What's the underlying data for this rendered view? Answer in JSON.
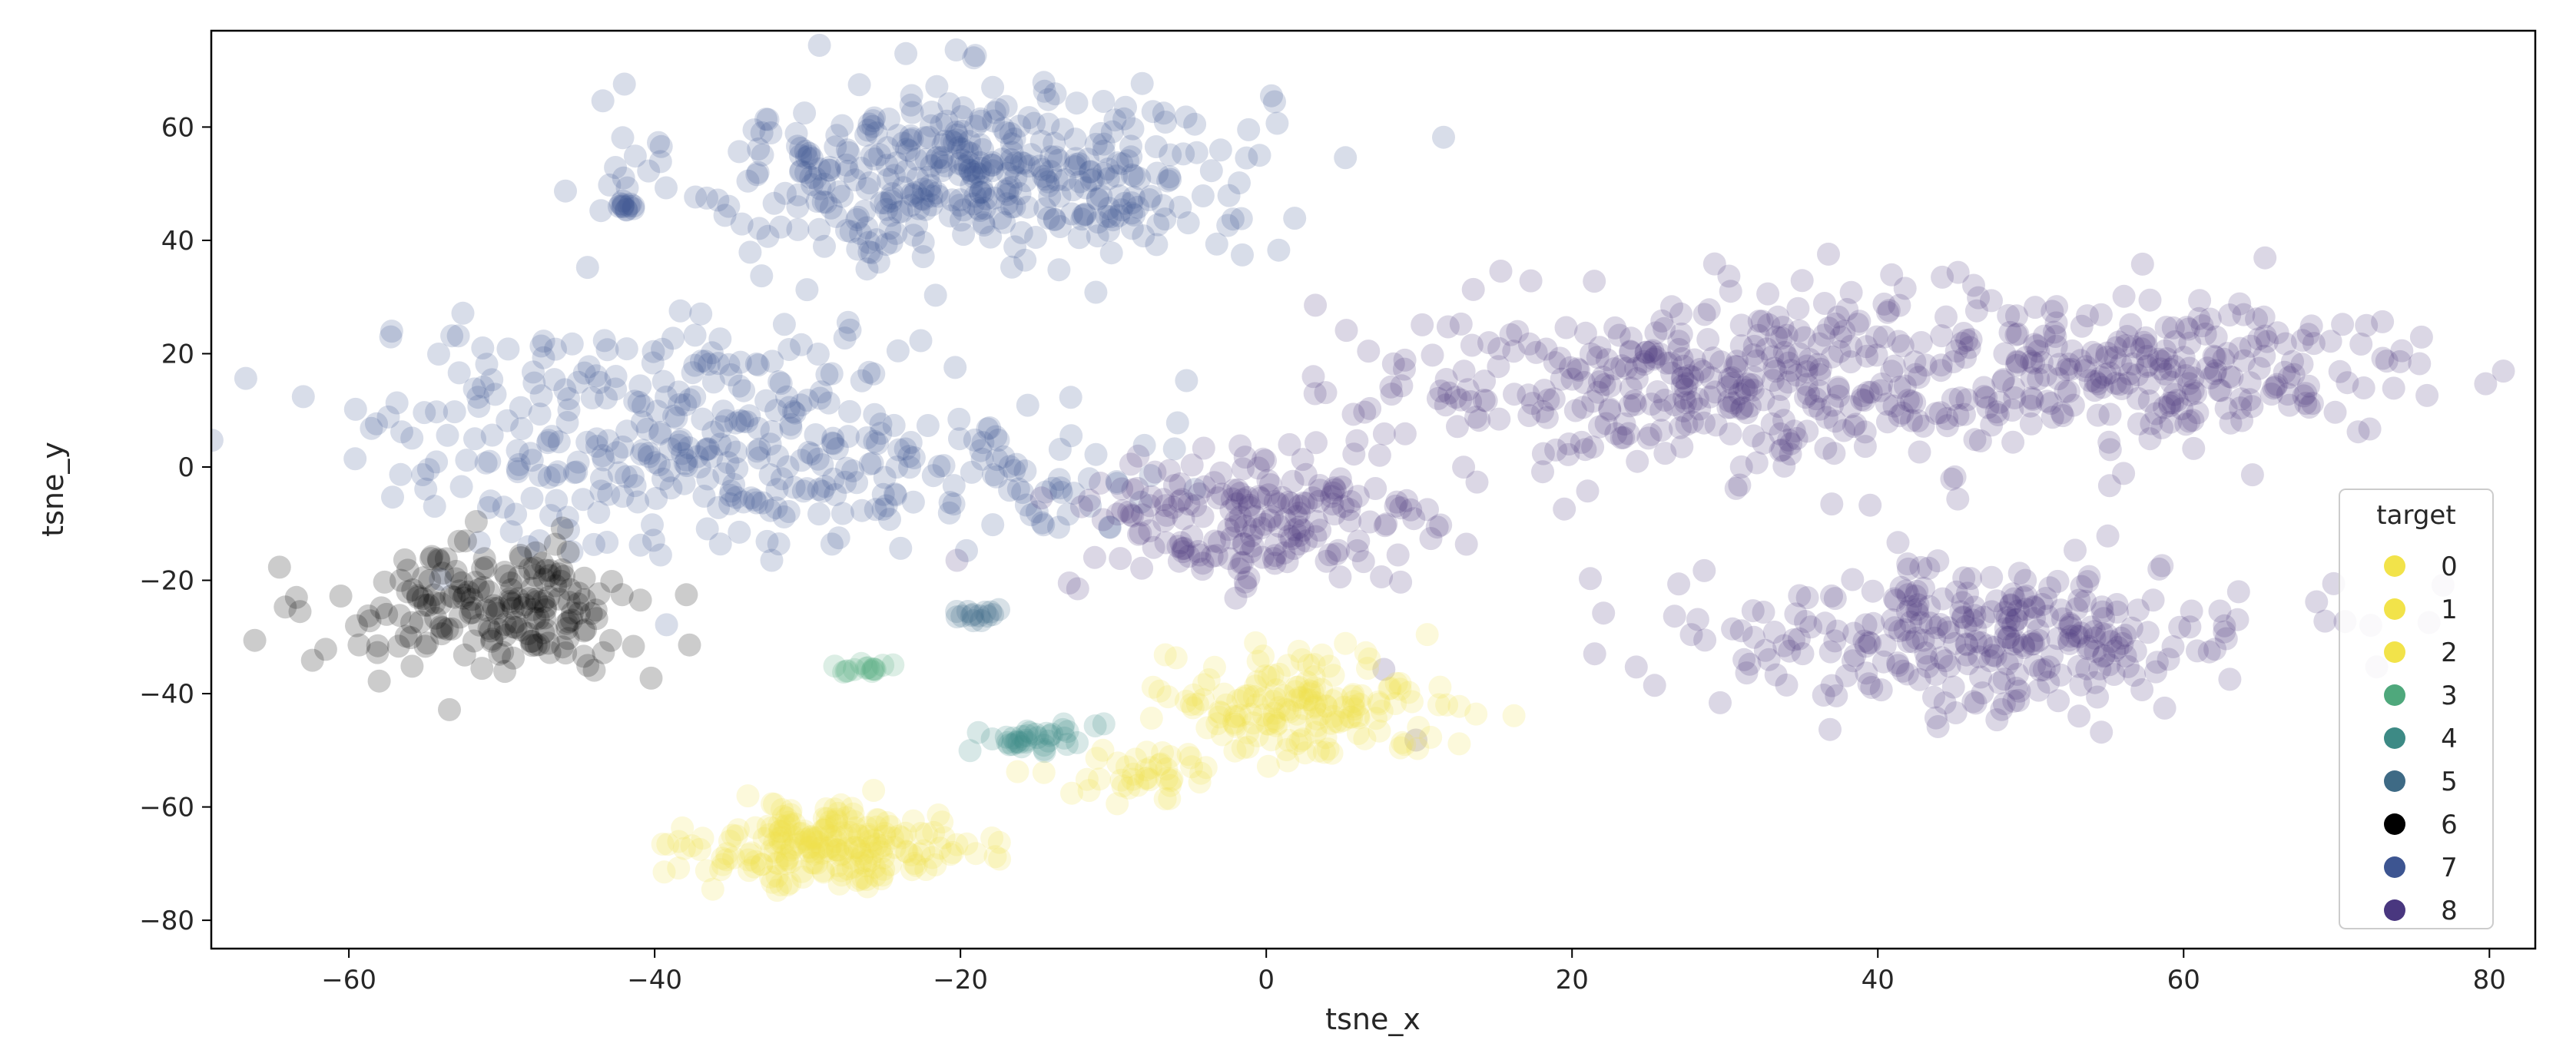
{
  "chart_data": {
    "type": "scatter",
    "title": "",
    "xlabel": "tsne_x",
    "ylabel": "tsne_y",
    "xlim": [
      -69,
      83
    ],
    "ylim": [
      -85,
      77
    ],
    "xticks": [
      -60,
      -40,
      -20,
      0,
      20,
      40,
      60,
      80
    ],
    "yticks": [
      60,
      40,
      20,
      0,
      -20,
      -40,
      -60,
      -80
    ],
    "xtick_labels": [
      "−60",
      "−40",
      "−20",
      "0",
      "20",
      "40",
      "60",
      "80"
    ],
    "ytick_labels": [
      "60",
      "40",
      "20",
      "0",
      "−20",
      "−40",
      "−60",
      "−80"
    ],
    "grid": false,
    "point_alpha": 0.2,
    "legend": {
      "title": "target",
      "placement": "lower-right",
      "entries": [
        {
          "label": "0",
          "color": "#f2e34a"
        },
        {
          "label": "1",
          "color": "#f2e34a"
        },
        {
          "label": "2",
          "color": "#f2e34a"
        },
        {
          "label": "3",
          "color": "#4fa87c"
        },
        {
          "label": "4",
          "color": "#3d8a85"
        },
        {
          "label": "5",
          "color": "#3e6a85"
        },
        {
          "label": "6",
          "color": "#000000"
        },
        {
          "label": "7",
          "color": "#3d5591"
        },
        {
          "label": "8",
          "color": "#49377f"
        }
      ]
    },
    "clusters": [
      {
        "target": "7",
        "cx": -19,
        "cy": 52,
        "sx": 9.5,
        "sy": 8,
        "n": 420
      },
      {
        "target": "7",
        "cx": -37,
        "cy": 5,
        "sx": 11,
        "sy": 10,
        "n": 360
      },
      {
        "target": "7",
        "cx": -15,
        "cy": -2,
        "sx": 4,
        "sy": 5,
        "n": 40
      },
      {
        "target": "7",
        "cx": -42,
        "cy": 46,
        "sx": 0.4,
        "sy": 0.4,
        "n": 12
      },
      {
        "target": "8",
        "cx": 32,
        "cy": 15,
        "sx": 13,
        "sy": 8,
        "n": 430
      },
      {
        "target": "8",
        "cx": 60,
        "cy": 17,
        "sx": 8,
        "sy": 6,
        "n": 190
      },
      {
        "target": "8",
        "cx": 47,
        "cy": -30,
        "sx": 9.5,
        "sy": 6.5,
        "n": 300
      },
      {
        "target": "8",
        "cx": -1,
        "cy": -10,
        "sx": 6,
        "sy": 6.5,
        "n": 190
      },
      {
        "target": "6",
        "cx": -51,
        "cy": -25,
        "sx": 5,
        "sy": 5.5,
        "n": 190
      },
      {
        "target": "0",
        "cx": -28,
        "cy": -67,
        "sx": 4.5,
        "sy": 3.5,
        "n": 220
      },
      {
        "target": "2",
        "cx": 2,
        "cy": -42,
        "sx": 4.5,
        "sy": 4.5,
        "n": 170
      },
      {
        "target": "1",
        "cx": -8,
        "cy": -54,
        "sx": 2.5,
        "sy": 2.5,
        "n": 40
      },
      {
        "target": "3",
        "cx": -26,
        "cy": -35.5,
        "sx": 0.7,
        "sy": 0.6,
        "n": 14
      },
      {
        "target": "4",
        "cx": -15,
        "cy": -48,
        "sx": 2,
        "sy": 1.3,
        "n": 35
      },
      {
        "target": "5",
        "cx": -19,
        "cy": -26,
        "sx": 0.8,
        "sy": 0.5,
        "n": 14
      }
    ]
  }
}
